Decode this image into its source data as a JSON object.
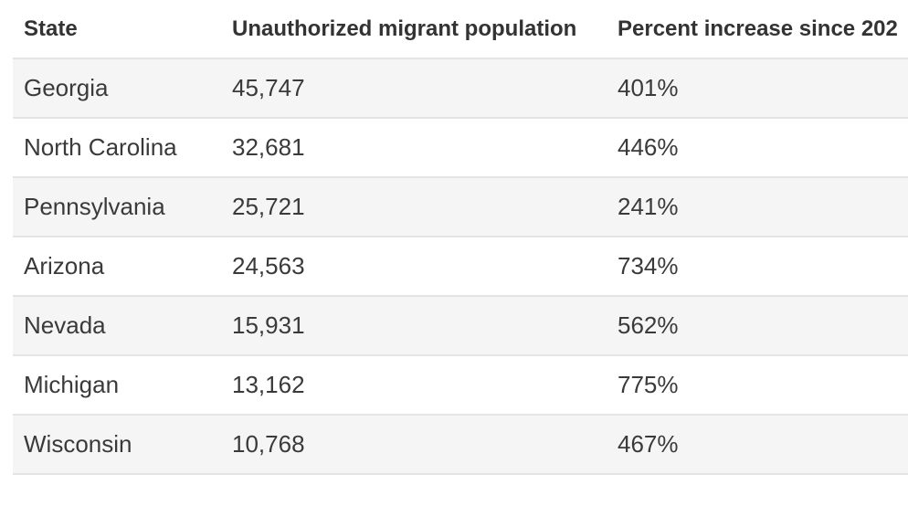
{
  "table": {
    "headers": [
      "State",
      "Unauthorized migrant population",
      "Percent increase since 202"
    ],
    "rows": [
      {
        "state": "Georgia",
        "population": "45,747",
        "increase": "401%"
      },
      {
        "state": "North Carolina",
        "population": "32,681",
        "increase": "446%"
      },
      {
        "state": "Pennsylvania",
        "population": "25,721",
        "increase": "241%"
      },
      {
        "state": "Arizona",
        "population": "24,563",
        "increase": "734%"
      },
      {
        "state": "Nevada",
        "population": "15,931",
        "increase": "562%"
      },
      {
        "state": "Michigan",
        "population": "13,162",
        "increase": "775%"
      },
      {
        "state": "Wisconsin",
        "population": "10,768",
        "increase": "467%"
      }
    ]
  }
}
